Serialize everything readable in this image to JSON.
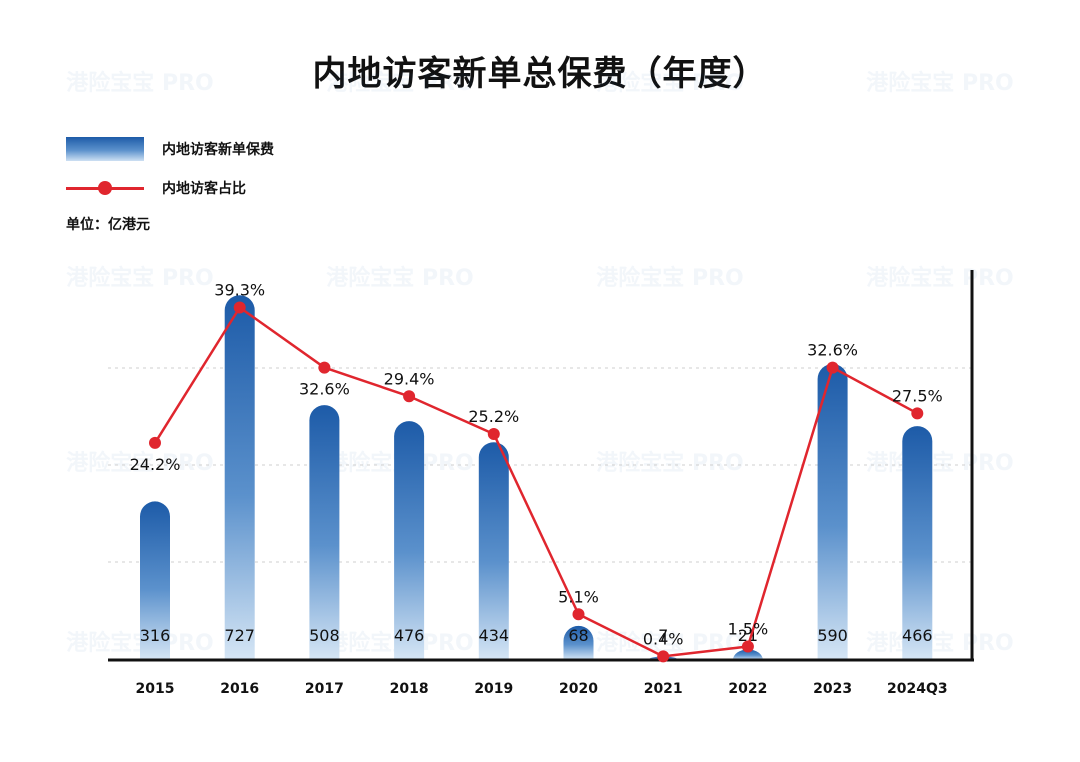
{
  "chart_data": {
    "type": "bar",
    "title": "内地访客新单总保费（年度）",
    "unit": "单位：亿港元",
    "categories": [
      "2015",
      "2016",
      "2017",
      "2018",
      "2019",
      "2020",
      "2021",
      "2022",
      "2023",
      "2024Q3"
    ],
    "series": [
      {
        "name": "内地访客新单保费",
        "kind": "bar",
        "values": [
          316,
          727,
          508,
          476,
          434,
          68,
          7,
          21,
          590,
          466
        ],
        "labels": [
          "316",
          "727",
          "508",
          "476",
          "434",
          "68",
          "7",
          "21",
          "590",
          "466"
        ]
      },
      {
        "name": "内地访客占比",
        "kind": "line",
        "values": [
          24.2,
          39.3,
          32.6,
          29.4,
          25.2,
          5.1,
          0.4,
          1.5,
          32.6,
          27.5
        ],
        "labels": [
          "24.2%",
          "39.3%",
          "32.6%",
          "29.4%",
          "25.2%",
          "5.1%",
          "0.4%",
          "1.5%",
          "32.6%",
          "27.5%"
        ]
      }
    ],
    "bar_ylim": [
      0,
      750
    ],
    "line_ylim": [
      0,
      40
    ],
    "grid": true,
    "legend_position": "top-left",
    "colors": {
      "bar_top": "#1d5ba8",
      "bar_bottom": "#d6e6f5",
      "line": "#e0262e",
      "axis": "#111111",
      "grid": "#cfcfcf"
    }
  },
  "watermark": "港险宝宝 PRO"
}
